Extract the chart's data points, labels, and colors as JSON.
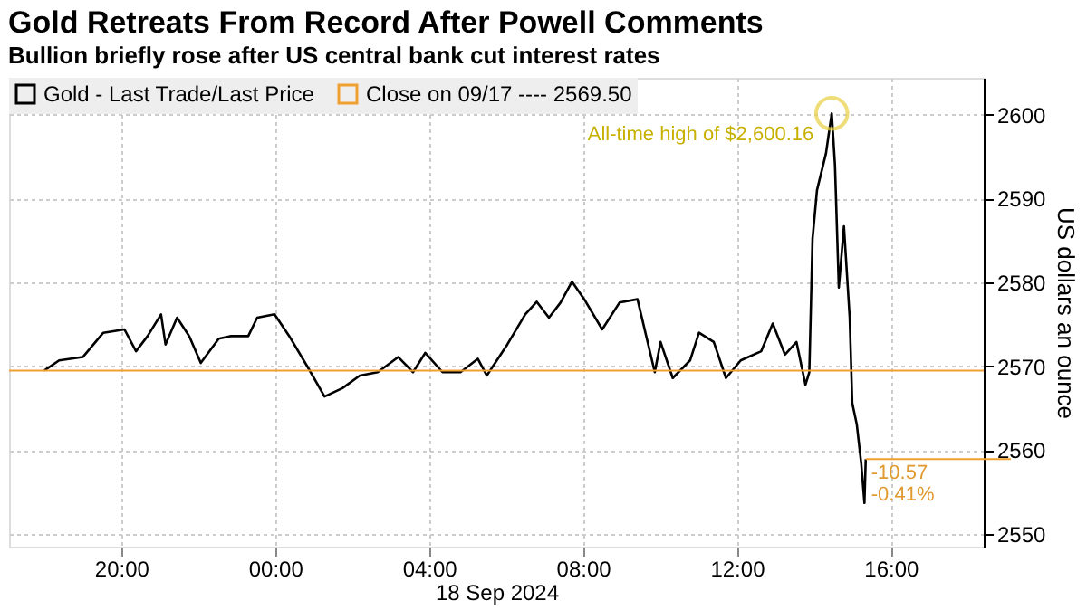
{
  "chart_data": {
    "type": "line",
    "title": "Gold Retreats From Record After Powell Comments",
    "subtitle": "Bullion briefly rose after US central bank cut interest rates",
    "xlabel": "18 Sep 2024",
    "ylabel": "US dollars an ounce",
    "x": [
      "2024-09-17T18:00",
      "2024-09-17T18:23",
      "2024-09-17T19:00",
      "2024-09-17T19:32",
      "2024-09-17T20:05",
      "2024-09-17T20:23",
      "2024-09-17T20:41",
      "2024-09-17T21:02",
      "2024-09-17T21:09",
      "2024-09-17T21:27",
      "2024-09-17T21:46",
      "2024-09-17T22:04",
      "2024-09-17T22:32",
      "2024-09-17T22:50",
      "2024-09-17T23:18",
      "2024-09-17T23:32",
      "2024-09-17T23:59",
      "2024-09-18T00:22",
      "2024-09-18T00:50",
      "2024-09-18T01:17",
      "2024-09-18T01:45",
      "2024-09-18T02:12",
      "2024-09-18T02:40",
      "2024-09-18T03:12",
      "2024-09-18T03:35",
      "2024-09-18T03:54",
      "2024-09-18T04:21",
      "2024-09-18T04:49",
      "2024-09-18T05:16",
      "2024-09-18T05:30",
      "2024-09-18T06:02",
      "2024-09-18T06:30",
      "2024-09-18T06:48",
      "2024-09-18T07:07",
      "2024-09-18T07:25",
      "2024-09-18T07:43",
      "2024-09-18T08:02",
      "2024-09-18T08:30",
      "2024-09-18T08:57",
      "2024-09-18T09:25",
      "2024-09-18T09:52",
      "2024-09-18T10:01",
      "2024-09-18T10:20",
      "2024-09-18T10:47",
      "2024-09-18T11:01",
      "2024-09-18T11:24",
      "2024-09-18T11:43",
      "2024-09-18T12:06",
      "2024-09-18T12:38",
      "2024-09-18T12:56",
      "2024-09-18T13:15",
      "2024-09-18T13:33",
      "2024-09-18T13:47",
      "2024-09-18T13:53",
      "2024-09-18T13:58",
      "2024-09-18T14:05",
      "2024-09-18T14:19",
      "2024-09-18T14:28",
      "2024-09-18T14:33",
      "2024-09-18T14:39",
      "2024-09-18T14:47",
      "2024-09-18T14:56",
      "2024-09-18T15:00",
      "2024-09-18T15:07",
      "2024-09-18T15:14",
      "2024-09-18T15:19",
      "2024-09-18T15:21"
    ],
    "series": [
      {
        "name": "Gold - Last Trade/Last Price",
        "color": "#000000",
        "values": [
          2569.5,
          2570.7,
          2571.1,
          2574.0,
          2574.4,
          2571.8,
          2573.6,
          2576.2,
          2572.6,
          2575.8,
          2573.6,
          2570.4,
          2573.3,
          2573.6,
          2573.6,
          2575.8,
          2576.2,
          2573.6,
          2570.0,
          2566.4,
          2567.4,
          2568.9,
          2569.3,
          2571.1,
          2569.3,
          2571.6,
          2569.3,
          2569.3,
          2570.9,
          2568.9,
          2572.6,
          2576.2,
          2577.7,
          2575.8,
          2577.6,
          2580.1,
          2578.0,
          2574.4,
          2577.6,
          2578.0,
          2569.3,
          2572.9,
          2568.6,
          2570.7,
          2574.0,
          2572.9,
          2568.6,
          2570.7,
          2571.8,
          2575.1,
          2571.4,
          2572.9,
          2567.8,
          2569.3,
          2585.2,
          2591.0,
          2595.4,
          2600.16,
          2594.0,
          2579.4,
          2586.7,
          2575.8,
          2565.6,
          2563.1,
          2558.4,
          2553.7,
          2558.93
        ]
      }
    ],
    "xlim": [
      "2024-09-17T17:05",
      "2024-09-18T18:25"
    ],
    "xticks": [
      {
        "value": "2024-09-17T20:00",
        "label": "20:00"
      },
      {
        "value": "2024-09-18T00:00",
        "label": "00:00"
      },
      {
        "value": "2024-09-18T04:00",
        "label": "04:00"
      },
      {
        "value": "2024-09-18T08:00",
        "label": "08:00"
      },
      {
        "value": "2024-09-18T12:00",
        "label": "12:00"
      },
      {
        "value": "2024-09-18T16:00",
        "label": "16:00"
      }
    ],
    "ylim": [
      2548.5,
      2604.4
    ],
    "yticks": [
      2550,
      2560,
      2570,
      2580,
      2590,
      2600
    ],
    "ref_lines": [
      {
        "axis": "y",
        "value": 2569.5,
        "label": "Close on 09/17 ---- 2569.50",
        "color": "#f0a030"
      }
    ],
    "annotations": [
      {
        "text": "All-time high of $2,600.16",
        "x": "2024-09-18T14:28",
        "y": 2600.16
      },
      {
        "text": "-10.57",
        "x": "2024-09-18T15:21",
        "y": 2558.93
      },
      {
        "text": "-0.41%",
        "x": "2024-09-18T15:21",
        "y": 2558.93
      }
    ],
    "grid": true,
    "legend": "top left",
    "line_style": "solid",
    "marker": "none"
  }
}
